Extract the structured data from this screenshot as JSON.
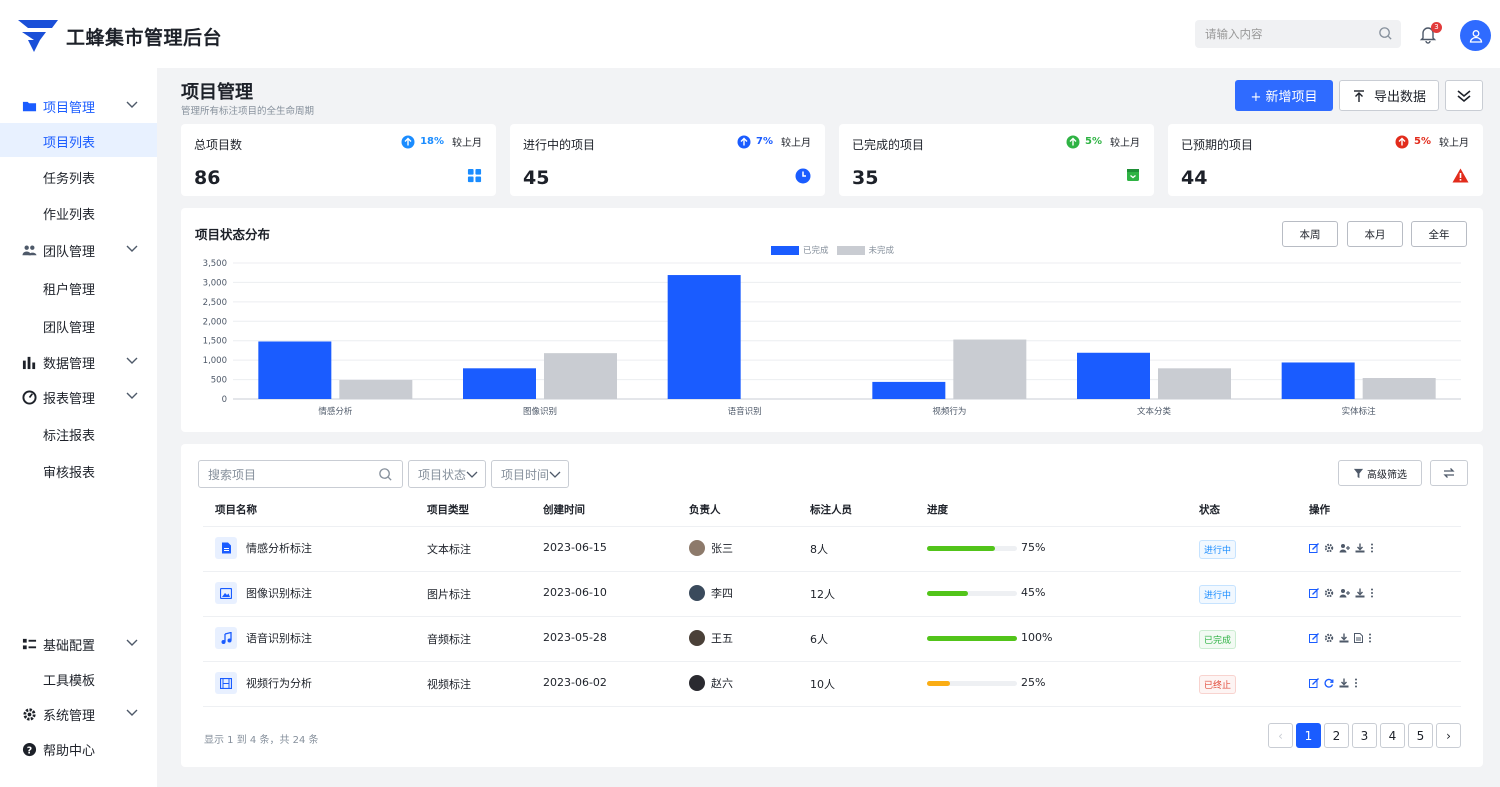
{
  "app": {
    "title": "工蜂集市管理后台"
  },
  "header": {
    "search_placeholder": "请输入内容",
    "notification_count": "3"
  },
  "sidebar": {
    "groups": [
      {
        "label": "项目管理",
        "icon": "folder-icon",
        "subitems": [
          "项目列表",
          "任务列表",
          "作业列表"
        ]
      },
      {
        "label": "团队管理",
        "icon": "team-icon",
        "subitems": [
          "租户管理",
          "团队管理"
        ]
      },
      {
        "label": "数据管理",
        "icon": "bar-chart-icon",
        "subitems": []
      },
      {
        "label": "报表管理",
        "icon": "dashboard-icon",
        "subitems": [
          "标注报表",
          "审核报表"
        ]
      },
      {
        "label": "基础配置",
        "icon": "list-config-icon",
        "subitems": [
          "工具模板"
        ]
      },
      {
        "label": "系统管理",
        "icon": "gear-icon",
        "subitems": []
      },
      {
        "label": "帮助中心",
        "icon": "help-icon",
        "subitems": []
      }
    ],
    "active": "项目列表"
  },
  "page": {
    "title": "项目管理",
    "subtitle": "管理所有标注项目的全生命周期",
    "add_button": "+ 新增项目",
    "export_button": "导出数据"
  },
  "stats": [
    {
      "label": "总项目数",
      "value": "86",
      "pct": "18%",
      "cmp": "较上月",
      "color": "#1a8cff",
      "icon": "grid-icon"
    },
    {
      "label": "进行中的项目",
      "value": "45",
      "pct": "7%",
      "cmp": "较上月",
      "color": "#1a5cff",
      "icon": "clock-icon"
    },
    {
      "label": "已完成的项目",
      "value": "35",
      "pct": "5%",
      "cmp": "较上月",
      "color": "#2fb344",
      "icon": "archive-icon"
    },
    {
      "label": "已预期的项目",
      "value": "44",
      "pct": "5%",
      "cmp": "较上月",
      "color": "#e22c1c",
      "icon": "warning-icon"
    }
  ],
  "chart_section": {
    "title": "项目状态分布",
    "ranges": [
      "本周",
      "本月",
      "全年"
    ]
  },
  "chart_data": {
    "type": "bar",
    "categories": [
      "情感分析",
      "图像识别",
      "语音识别",
      "视频行为",
      "文本分类",
      "实体标注"
    ],
    "series": [
      {
        "name": "已完成",
        "color": "#1a5cff",
        "values": [
          1480,
          790,
          3190,
          440,
          1190,
          940
        ]
      },
      {
        "name": "未完成",
        "color": "#c9ccd2",
        "values": [
          490,
          1180,
          0,
          1530,
          790,
          540
        ]
      }
    ],
    "ylim": [
      0,
      3500
    ],
    "yticks": [
      "0",
      "500",
      "1,000",
      "1,500",
      "2,000",
      "2,500",
      "3,000",
      "3,500"
    ],
    "ytick_values": [
      0,
      500,
      1000,
      1500,
      2000,
      2500,
      3000,
      3500
    ],
    "grid": true,
    "legend_position": "top-center"
  },
  "filters": {
    "search_placeholder": "搜索项目",
    "status_label": "项目状态",
    "time_label": "项目时间",
    "advanced_label": "高级筛选"
  },
  "table": {
    "columns": [
      "项目名称",
      "项目类型",
      "创建时间",
      "负责人",
      "标注人员",
      "进度",
      "状态",
      "操作"
    ],
    "rows": [
      {
        "name": "情感分析标注",
        "icon": "document-icon",
        "type": "文本标注",
        "date": "2023-06-15",
        "owner": "张三",
        "staff": "8人",
        "progress": 0.75,
        "progress_label": "75%",
        "progress_color": "#52c41a",
        "status": "进行中",
        "status_color": "#1a8cff"
      },
      {
        "name": "图像识别标注",
        "icon": "image-icon",
        "type": "图片标注",
        "date": "2023-06-10",
        "owner": "李四",
        "staff": "12人",
        "progress": 0.45,
        "progress_label": "45%",
        "progress_color": "#52c41a",
        "status": "进行中",
        "status_color": "#1a8cff"
      },
      {
        "name": "语音识别标注",
        "icon": "music-icon",
        "type": "音频标注",
        "date": "2023-05-28",
        "owner": "王五",
        "staff": "6人",
        "progress": 1.0,
        "progress_label": "100%",
        "progress_color": "#52c41a",
        "status": "已完成",
        "status_color": "#2fb344"
      },
      {
        "name": "视频行为分析",
        "icon": "film-icon",
        "type": "视频标注",
        "date": "2023-06-02",
        "owner": "赵六",
        "staff": "10人",
        "progress": 0.25,
        "progress_label": "25%",
        "progress_color": "#faad14",
        "status": "已终止",
        "status_color": "#e24c3c"
      }
    ]
  },
  "pagination": {
    "info": "显示 1 到 4 条，共 24 条",
    "pages": [
      "1",
      "2",
      "3",
      "4",
      "5"
    ],
    "current": "1",
    "prev": "‹",
    "next": "›"
  }
}
